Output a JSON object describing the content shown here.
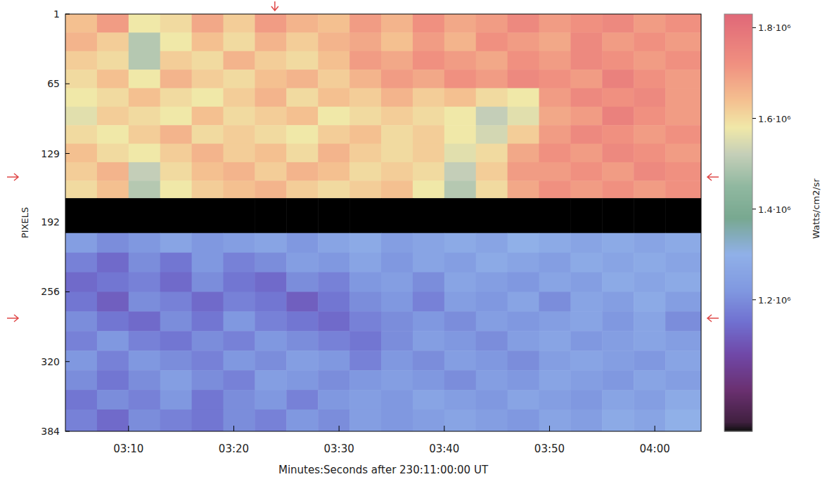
{
  "chart_data": {
    "type": "heatmap",
    "x_label": "Minutes:Seconds after  230:11:00:00 UT",
    "y_label": "PIXELS",
    "colorbar_label": "Watts/cm2/sr",
    "xlim": [
      184,
      244.4
    ],
    "ylim": [
      1,
      384
    ],
    "xticks": [
      {
        "value": 190,
        "label": "03:10"
      },
      {
        "value": 200,
        "label": "03:20"
      },
      {
        "value": 210,
        "label": "03:30"
      },
      {
        "value": 220,
        "label": "03:40"
      },
      {
        "value": 230,
        "label": "03:50"
      },
      {
        "value": 240,
        "label": "04:00"
      }
    ],
    "yticks": [
      1,
      65,
      129,
      192,
      256,
      320,
      384
    ],
    "color_range": [
      910000,
      1830000
    ],
    "color_ticks": [
      {
        "value": 1200000,
        "label": "1.2·10⁶"
      },
      {
        "value": 1400000,
        "label": "1.4·10⁶"
      },
      {
        "value": 1600000,
        "label": "1.6·10⁶"
      },
      {
        "value": 1800000,
        "label": "1.8·10⁶"
      }
    ],
    "markers": {
      "x": [
        203.9
      ],
      "y": [
        150.6,
        280.2
      ]
    },
    "x_edges": [
      184,
      187,
      190,
      193,
      196,
      199,
      202,
      205,
      208,
      211,
      214,
      217,
      220,
      223,
      226,
      229,
      232,
      235,
      238,
      241,
      244.4
    ],
    "y_edges": [
      1,
      18,
      35,
      52,
      69,
      86,
      103,
      120,
      137,
      154,
      170,
      202,
      220,
      238,
      256,
      274,
      292,
      310,
      328,
      346,
      364,
      384
    ],
    "cells": [
      [
        1640000,
        1700000,
        1580000,
        1600000,
        1680000,
        1620000,
        1700000,
        1660000,
        1640000,
        1700000,
        1660000,
        1720000,
        1680000,
        1700000,
        1740000,
        1700000,
        1720000,
        1740000,
        1700000,
        1720000
      ],
      [
        1660000,
        1620000,
        1500000,
        1580000,
        1640000,
        1600000,
        1660000,
        1620000,
        1660000,
        1680000,
        1640000,
        1700000,
        1660000,
        1720000,
        1700000,
        1680000,
        1740000,
        1700000,
        1720000,
        1700000
      ],
      [
        1620000,
        1600000,
        1500000,
        1620000,
        1600000,
        1660000,
        1620000,
        1600000,
        1640000,
        1700000,
        1680000,
        1720000,
        1700000,
        1680000,
        1720000,
        1700000,
        1740000,
        1720000,
        1700000,
        1720000
      ],
      [
        1600000,
        1640000,
        1580000,
        1660000,
        1620000,
        1600000,
        1640000,
        1660000,
        1620000,
        1660000,
        1700000,
        1680000,
        1720000,
        1700000,
        1740000,
        1720000,
        1700000,
        1760000,
        1720000,
        1700000
      ],
      [
        1580000,
        1600000,
        1640000,
        1600000,
        1580000,
        1620000,
        1660000,
        1600000,
        1640000,
        1620000,
        1660000,
        1620000,
        1640000,
        1600000,
        1580000,
        1700000,
        1740000,
        1720000,
        1740000,
        1700000
      ],
      [
        1560000,
        1620000,
        1600000,
        1580000,
        1640000,
        1600000,
        1620000,
        1640000,
        1580000,
        1600000,
        1620000,
        1600000,
        1580000,
        1520000,
        1560000,
        1680000,
        1700000,
        1760000,
        1720000,
        1700000
      ],
      [
        1600000,
        1580000,
        1620000,
        1660000,
        1600000,
        1620000,
        1600000,
        1580000,
        1620000,
        1640000,
        1600000,
        1620000,
        1580000,
        1540000,
        1620000,
        1700000,
        1740000,
        1720000,
        1700000,
        1720000
      ],
      [
        1640000,
        1600000,
        1580000,
        1620000,
        1660000,
        1620000,
        1640000,
        1600000,
        1660000,
        1620000,
        1600000,
        1620000,
        1560000,
        1600000,
        1680000,
        1720000,
        1700000,
        1740000,
        1720000,
        1700000
      ],
      [
        1620000,
        1660000,
        1520000,
        1600000,
        1640000,
        1660000,
        1620000,
        1660000,
        1640000,
        1600000,
        1620000,
        1600000,
        1520000,
        1620000,
        1700000,
        1700000,
        1720000,
        1700000,
        1740000,
        1720000
      ],
      [
        1600000,
        1640000,
        1500000,
        1580000,
        1620000,
        1640000,
        1660000,
        1620000,
        1600000,
        1620000,
        1640000,
        1580000,
        1500000,
        1600000,
        1680000,
        1720000,
        1700000,
        1720000,
        1700000,
        1720000
      ],
      [
        null,
        null,
        null,
        null,
        null,
        null,
        null,
        null,
        null,
        null,
        null,
        null,
        null,
        null,
        null,
        null,
        null,
        null,
        null,
        null
      ],
      [
        1240000,
        1200000,
        1220000,
        1260000,
        1220000,
        1240000,
        1260000,
        1220000,
        1260000,
        1280000,
        1240000,
        1260000,
        1280000,
        1260000,
        1300000,
        1280000,
        1260000,
        1280000,
        1260000,
        1280000
      ],
      [
        1180000,
        1140000,
        1200000,
        1160000,
        1220000,
        1180000,
        1200000,
        1240000,
        1220000,
        1260000,
        1220000,
        1260000,
        1240000,
        1280000,
        1260000,
        1240000,
        1280000,
        1260000,
        1280000,
        1260000
      ],
      [
        1140000,
        1160000,
        1180000,
        1140000,
        1200000,
        1160000,
        1140000,
        1200000,
        1180000,
        1220000,
        1240000,
        1200000,
        1260000,
        1240000,
        1220000,
        1260000,
        1240000,
        1280000,
        1260000,
        1280000
      ],
      [
        1160000,
        1120000,
        1200000,
        1180000,
        1140000,
        1180000,
        1160000,
        1120000,
        1160000,
        1200000,
        1220000,
        1180000,
        1240000,
        1220000,
        1260000,
        1200000,
        1260000,
        1240000,
        1280000,
        1240000
      ],
      [
        1200000,
        1160000,
        1140000,
        1200000,
        1160000,
        1220000,
        1180000,
        1160000,
        1140000,
        1180000,
        1200000,
        1220000,
        1200000,
        1240000,
        1220000,
        1240000,
        1260000,
        1220000,
        1260000,
        1200000
      ],
      [
        1180000,
        1220000,
        1180000,
        1160000,
        1200000,
        1180000,
        1220000,
        1200000,
        1180000,
        1160000,
        1200000,
        1240000,
        1220000,
        1200000,
        1240000,
        1260000,
        1220000,
        1240000,
        1260000,
        1240000
      ],
      [
        1220000,
        1180000,
        1220000,
        1200000,
        1180000,
        1220000,
        1200000,
        1240000,
        1220000,
        1180000,
        1220000,
        1200000,
        1240000,
        1220000,
        1200000,
        1240000,
        1260000,
        1240000,
        1220000,
        1260000
      ],
      [
        1200000,
        1160000,
        1200000,
        1240000,
        1200000,
        1180000,
        1240000,
        1220000,
        1200000,
        1220000,
        1240000,
        1220000,
        1200000,
        1240000,
        1220000,
        1260000,
        1240000,
        1220000,
        1260000,
        1240000
      ],
      [
        1160000,
        1200000,
        1180000,
        1220000,
        1160000,
        1200000,
        1220000,
        1180000,
        1220000,
        1240000,
        1220000,
        1260000,
        1240000,
        1220000,
        1260000,
        1240000,
        1220000,
        1260000,
        1240000,
        1280000
      ],
      [
        1180000,
        1140000,
        1200000,
        1180000,
        1160000,
        1200000,
        1180000,
        1220000,
        1200000,
        1240000,
        1220000,
        1240000,
        1260000,
        1240000,
        1220000,
        1260000,
        1240000,
        1280000,
        1260000,
        1300000
      ]
    ]
  }
}
